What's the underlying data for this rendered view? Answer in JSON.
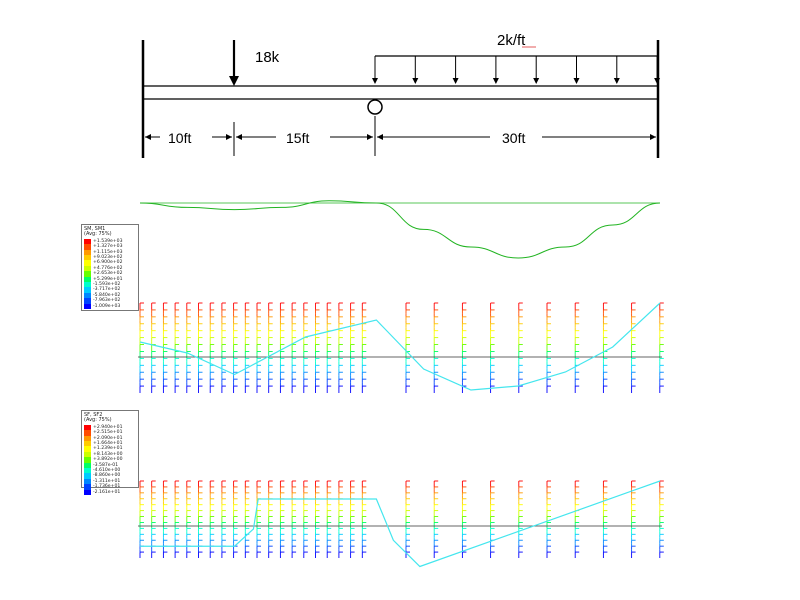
{
  "beam": {
    "point_load": "18k",
    "distributed_load": "2k/ft",
    "spans": [
      {
        "label": "10ft",
        "length_ft": 10
      },
      {
        "label": "15ft",
        "length_ft": 15
      },
      {
        "label": "30ft",
        "length_ft": 30
      }
    ],
    "supports": [
      "fixed-left",
      "hinge-at-25ft",
      "fixed-right"
    ]
  },
  "deflected_shape": {
    "x_ft": [
      0,
      5,
      10,
      15,
      20,
      25,
      30,
      35,
      40,
      45,
      50,
      55
    ],
    "relative_deflection": [
      0,
      -0.1,
      -0.15,
      -0.1,
      0.05,
      0.0,
      -0.6,
      -1.0,
      -1.25,
      -1.0,
      -0.5,
      0
    ]
  },
  "moment_plot": {
    "legend_title_1": "SM, SM1",
    "legend_title_2": "(Avg: 75%)",
    "legend_values": [
      "+1.539e+03",
      "+1.327e+03",
      "+1.115e+03",
      "+9.023e+02",
      "+6.900e+02",
      "+4.776e+02",
      "+2.653e+02",
      "+5.299e+01",
      "-1.593e+02",
      "-3.717e+02",
      "-5.840e+02",
      "-7.963e+02",
      "-1.009e+03"
    ],
    "x_ft": [
      0,
      5,
      10,
      17.5,
      25,
      30,
      35,
      40,
      45,
      50,
      55
    ],
    "values": [
      150,
      40,
      -175,
      200,
      370,
      -120,
      -330,
      -290,
      -150,
      100,
      540
    ],
    "range": [
      -400,
      600
    ]
  },
  "shear_plot": {
    "legend_title_1": "SF, SF2",
    "legend_title_2": "(Avg: 75%)",
    "legend_values": [
      "+2.940e+01",
      "+2.515e+01",
      "+2.090e+01",
      "+1.664e+01",
      "+1.239e+01",
      "+8.143e+00",
      "+3.892e+00",
      "-3.587e-01",
      "-4.610e+00",
      "-8.860e+00",
      "-1.311e+01",
      "-1.736e+01",
      "-2.161e+01"
    ],
    "x_ft": [
      0,
      10,
      12,
      12.5,
      25,
      26.8,
      29.6,
      55
    ],
    "values": [
      -13.5,
      -13.5,
      -2,
      18,
      18,
      -9.5,
      -27,
      30
    ],
    "range": [
      -30,
      35
    ]
  },
  "contour_colors": [
    "#ff0000",
    "#ff4d00",
    "#ff9900",
    "#ffcc00",
    "#ffff00",
    "#ccff00",
    "#66ff00",
    "#00ff66",
    "#00ffcc",
    "#00ccff",
    "#0088ff",
    "#0044ff",
    "#0000ff"
  ],
  "line_colors": {
    "beam": "#000000",
    "deflection": "#22b422",
    "response": "#44e6ee",
    "axis": "#333333",
    "dim": "#000000"
  }
}
